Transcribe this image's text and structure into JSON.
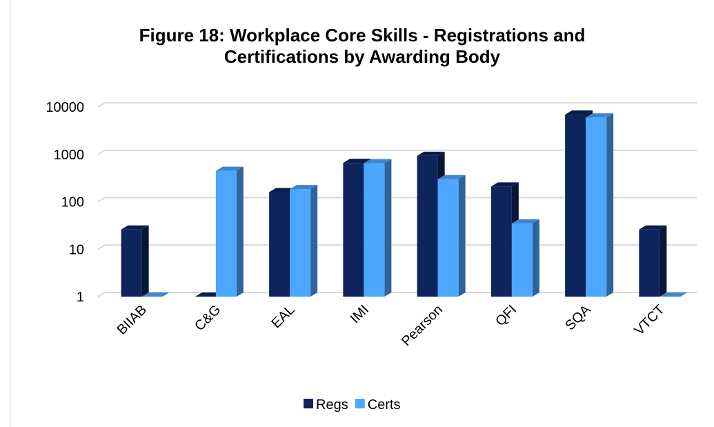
{
  "chart_data": {
    "type": "bar3d",
    "title": "Figure 18: Workplace Core Skills - Registrations and Certifications by Awarding Body",
    "categories": [
      "BIIAB",
      "C&G",
      "EAL",
      "IMI",
      "Pearson",
      "QFI",
      "SQA",
      "VTCT"
    ],
    "series": [
      {
        "name": "Regs",
        "color": "#0d245c",
        "values": [
          26,
          0,
          160,
          660,
          930,
          210,
          6900,
          26
        ]
      },
      {
        "name": "Certs",
        "color": "#4da6ff",
        "values": [
          0,
          450,
          185,
          650,
          300,
          35,
          6000,
          0
        ]
      }
    ],
    "ylim": [
      1,
      10000
    ],
    "yticks": [
      1,
      10,
      100,
      1000,
      10000
    ],
    "log_scale": true,
    "grid": true,
    "legend": "bottom"
  }
}
